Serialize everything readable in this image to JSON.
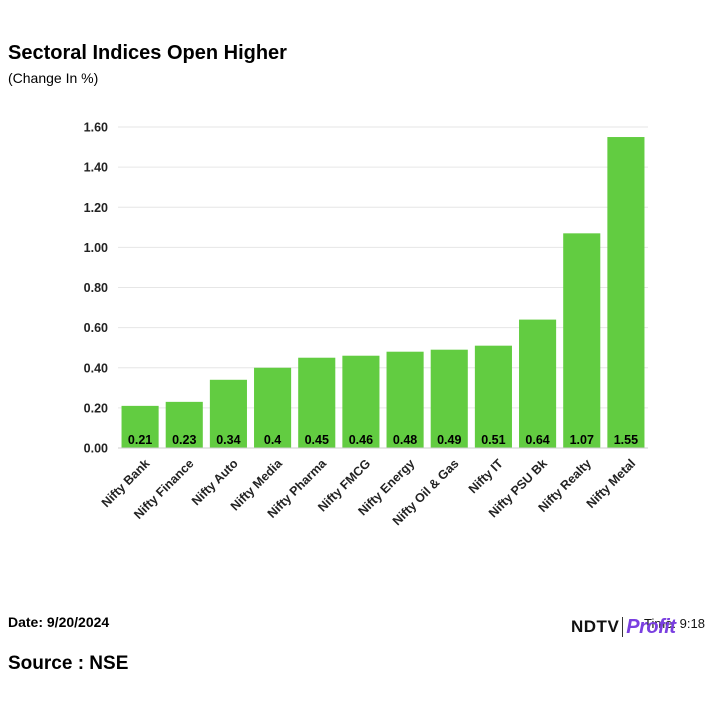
{
  "chart_data": {
    "type": "bar",
    "title": "Sectoral Indices Open Higher",
    "subtitle": "(Change In %)",
    "categories": [
      "Nifty Bank",
      "Nifty Finance",
      "Nifty Auto",
      "Nifty Media",
      "Nifty Pharma",
      "Nifty FMCG",
      "Nifty Energy",
      "Nifty Oil & Gas",
      "Nifty IT",
      "Nifty PSU Bk",
      "Nifty Realty",
      "Nifty Metal"
    ],
    "values": [
      0.21,
      0.23,
      0.34,
      0.4,
      0.45,
      0.46,
      0.48,
      0.49,
      0.51,
      0.64,
      1.07,
      1.55
    ],
    "data_labels": [
      "0.21",
      "0.23",
      "0.34",
      "0.4",
      "0.45",
      "0.46",
      "0.48",
      "0.49",
      "0.51",
      "0.64",
      "1.07",
      "1.55"
    ],
    "yticks": [
      "0.00",
      "0.20",
      "0.40",
      "0.60",
      "0.80",
      "1.00",
      "1.20",
      "1.40",
      "1.60"
    ],
    "ytick_values": [
      0,
      0.2,
      0.4,
      0.6,
      0.8,
      1.0,
      1.2,
      1.4,
      1.6
    ],
    "ylim": [
      0,
      1.6
    ],
    "xlabel": "",
    "ylabel": "",
    "grid": true,
    "bar_color": "#62cc41",
    "grid_color": "#e6e6e6"
  },
  "footer": {
    "date": "Date: 9/20/2024",
    "source": "Source : NSE",
    "logo_ndtv": "NDTV",
    "logo_profit": "Profit",
    "time": "Time: 9:18"
  }
}
